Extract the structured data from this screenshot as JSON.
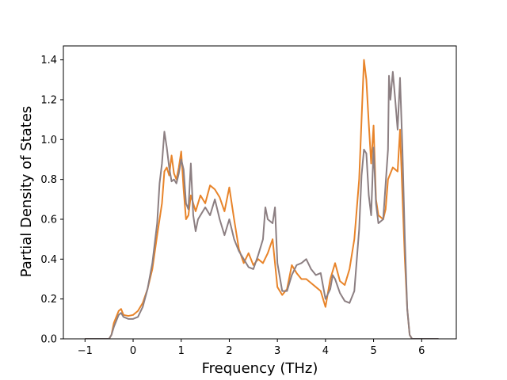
{
  "chart_data": {
    "type": "line",
    "title": "",
    "xlabel": "Frequency (THz)",
    "ylabel": "Partial Density of States",
    "xlim": [
      -1.45,
      6.72
    ],
    "ylim": [
      0,
      1.47
    ],
    "xticks": [
      "−1",
      "0",
      "1",
      "2",
      "3",
      "4",
      "5",
      "6"
    ],
    "yticks": [
      "0.0",
      "0.2",
      "0.4",
      "0.6",
      "0.8",
      "1.0",
      "1.2",
      "1.4"
    ],
    "grid": false,
    "legend": "none",
    "series": [
      {
        "color": "#e8842a",
        "points": [
          [
            -1.0,
            0.0
          ],
          [
            -0.5,
            0.0
          ],
          [
            -0.45,
            0.02
          ],
          [
            -0.4,
            0.08
          ],
          [
            -0.3,
            0.14
          ],
          [
            -0.25,
            0.15
          ],
          [
            -0.2,
            0.12
          ],
          [
            -0.1,
            0.115
          ],
          [
            0.0,
            0.12
          ],
          [
            0.1,
            0.14
          ],
          [
            0.2,
            0.18
          ],
          [
            0.3,
            0.25
          ],
          [
            0.4,
            0.35
          ],
          [
            0.5,
            0.52
          ],
          [
            0.6,
            0.68
          ],
          [
            0.65,
            0.84
          ],
          [
            0.7,
            0.86
          ],
          [
            0.75,
            0.82
          ],
          [
            0.8,
            0.92
          ],
          [
            0.85,
            0.83
          ],
          [
            0.9,
            0.8
          ],
          [
            0.95,
            0.86
          ],
          [
            1.0,
            0.94
          ],
          [
            1.05,
            0.75
          ],
          [
            1.1,
            0.6
          ],
          [
            1.15,
            0.62
          ],
          [
            1.2,
            0.72
          ],
          [
            1.3,
            0.64
          ],
          [
            1.4,
            0.72
          ],
          [
            1.5,
            0.68
          ],
          [
            1.6,
            0.77
          ],
          [
            1.7,
            0.75
          ],
          [
            1.8,
            0.71
          ],
          [
            1.9,
            0.64
          ],
          [
            2.0,
            0.76
          ],
          [
            2.1,
            0.6
          ],
          [
            2.2,
            0.45
          ],
          [
            2.3,
            0.38
          ],
          [
            2.4,
            0.43
          ],
          [
            2.5,
            0.37
          ],
          [
            2.6,
            0.4
          ],
          [
            2.7,
            0.38
          ],
          [
            2.8,
            0.43
          ],
          [
            2.9,
            0.5
          ],
          [
            3.0,
            0.26
          ],
          [
            3.1,
            0.22
          ],
          [
            3.2,
            0.25
          ],
          [
            3.3,
            0.37
          ],
          [
            3.4,
            0.33
          ],
          [
            3.5,
            0.3
          ],
          [
            3.6,
            0.3
          ],
          [
            3.7,
            0.28
          ],
          [
            3.8,
            0.26
          ],
          [
            3.9,
            0.24
          ],
          [
            4.0,
            0.16
          ],
          [
            4.1,
            0.3
          ],
          [
            4.2,
            0.38
          ],
          [
            4.3,
            0.29
          ],
          [
            4.4,
            0.27
          ],
          [
            4.5,
            0.35
          ],
          [
            4.6,
            0.5
          ],
          [
            4.7,
            0.8
          ],
          [
            4.75,
            1.1
          ],
          [
            4.8,
            1.4
          ],
          [
            4.85,
            1.3
          ],
          [
            4.9,
            1.08
          ],
          [
            4.95,
            0.88
          ],
          [
            5.0,
            1.07
          ],
          [
            5.05,
            0.7
          ],
          [
            5.1,
            0.62
          ],
          [
            5.2,
            0.6
          ],
          [
            5.25,
            0.65
          ],
          [
            5.3,
            0.8
          ],
          [
            5.4,
            0.86
          ],
          [
            5.45,
            0.85
          ],
          [
            5.5,
            0.84
          ],
          [
            5.55,
            1.05
          ],
          [
            5.6,
            0.72
          ],
          [
            5.65,
            0.4
          ],
          [
            5.7,
            0.15
          ],
          [
            5.75,
            0.02
          ],
          [
            5.8,
            0.0
          ],
          [
            6.35,
            0.0
          ]
        ]
      },
      {
        "color": "#8c7f82",
        "points": [
          [
            -1.0,
            0.0
          ],
          [
            -0.5,
            0.0
          ],
          [
            -0.45,
            0.02
          ],
          [
            -0.4,
            0.06
          ],
          [
            -0.3,
            0.12
          ],
          [
            -0.25,
            0.13
          ],
          [
            -0.2,
            0.11
          ],
          [
            -0.1,
            0.1
          ],
          [
            0.0,
            0.1
          ],
          [
            0.1,
            0.11
          ],
          [
            0.2,
            0.16
          ],
          [
            0.3,
            0.25
          ],
          [
            0.4,
            0.38
          ],
          [
            0.5,
            0.58
          ],
          [
            0.55,
            0.78
          ],
          [
            0.6,
            0.88
          ],
          [
            0.65,
            1.04
          ],
          [
            0.7,
            0.96
          ],
          [
            0.75,
            0.86
          ],
          [
            0.8,
            0.79
          ],
          [
            0.85,
            0.8
          ],
          [
            0.9,
            0.78
          ],
          [
            0.95,
            0.83
          ],
          [
            1.0,
            0.9
          ],
          [
            1.05,
            0.85
          ],
          [
            1.1,
            0.68
          ],
          [
            1.15,
            0.65
          ],
          [
            1.2,
            0.88
          ],
          [
            1.25,
            0.62
          ],
          [
            1.3,
            0.54
          ],
          [
            1.35,
            0.6
          ],
          [
            1.4,
            0.62
          ],
          [
            1.5,
            0.66
          ],
          [
            1.6,
            0.62
          ],
          [
            1.7,
            0.7
          ],
          [
            1.8,
            0.6
          ],
          [
            1.9,
            0.52
          ],
          [
            2.0,
            0.6
          ],
          [
            2.1,
            0.5
          ],
          [
            2.2,
            0.44
          ],
          [
            2.3,
            0.4
          ],
          [
            2.4,
            0.36
          ],
          [
            2.5,
            0.35
          ],
          [
            2.6,
            0.42
          ],
          [
            2.7,
            0.5
          ],
          [
            2.75,
            0.66
          ],
          [
            2.8,
            0.6
          ],
          [
            2.9,
            0.58
          ],
          [
            2.95,
            0.66
          ],
          [
            3.0,
            0.38
          ],
          [
            3.1,
            0.24
          ],
          [
            3.2,
            0.24
          ],
          [
            3.3,
            0.32
          ],
          [
            3.4,
            0.37
          ],
          [
            3.5,
            0.38
          ],
          [
            3.6,
            0.4
          ],
          [
            3.7,
            0.35
          ],
          [
            3.8,
            0.32
          ],
          [
            3.9,
            0.33
          ],
          [
            4.0,
            0.2
          ],
          [
            4.1,
            0.25
          ],
          [
            4.15,
            0.32
          ],
          [
            4.2,
            0.3
          ],
          [
            4.3,
            0.23
          ],
          [
            4.4,
            0.19
          ],
          [
            4.5,
            0.18
          ],
          [
            4.6,
            0.24
          ],
          [
            4.7,
            0.55
          ],
          [
            4.75,
            0.82
          ],
          [
            4.8,
            0.95
          ],
          [
            4.85,
            0.93
          ],
          [
            4.9,
            0.72
          ],
          [
            4.95,
            0.62
          ],
          [
            5.0,
            0.96
          ],
          [
            5.05,
            0.68
          ],
          [
            5.1,
            0.58
          ],
          [
            5.2,
            0.6
          ],
          [
            5.3,
            0.95
          ],
          [
            5.32,
            1.32
          ],
          [
            5.35,
            1.2
          ],
          [
            5.4,
            1.34
          ],
          [
            5.45,
            1.2
          ],
          [
            5.5,
            1.05
          ],
          [
            5.55,
            1.31
          ],
          [
            5.6,
            0.95
          ],
          [
            5.65,
            0.5
          ],
          [
            5.7,
            0.15
          ],
          [
            5.75,
            0.02
          ],
          [
            5.8,
            0.0
          ],
          [
            6.35,
            0.0
          ]
        ]
      }
    ]
  }
}
